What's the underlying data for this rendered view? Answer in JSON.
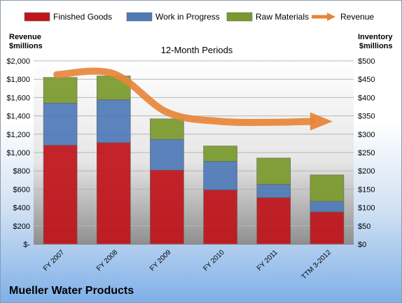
{
  "chart_data": {
    "type": "bar",
    "stacked": true,
    "title": "12-Month Periods",
    "left_axis_title": [
      "Revenue",
      "$millions"
    ],
    "right_axis_title": [
      "Inventory",
      "$millions"
    ],
    "company": "Mueller Water Products",
    "categories": [
      "FY 2007",
      "FY 2008",
      "FY 2009",
      "FY 2010",
      "FY 2011",
      "TTM 3-2012"
    ],
    "series": [
      {
        "name": "Finished Goods",
        "color": "#c0141b",
        "values": [
          270,
          277,
          202,
          148,
          127,
          88
        ]
      },
      {
        "name": "Work in Progress",
        "color": "#4f7ab8",
        "values": [
          115,
          117,
          84,
          78,
          36,
          29
        ]
      },
      {
        "name": "Raw Materials",
        "color": "#7a9a2c",
        "values": [
          70,
          65,
          56,
          42,
          72,
          72
        ]
      }
    ],
    "line_series": {
      "name": "Revenue",
      "color": "#e8853a",
      "values": [
        1850,
        1860,
        1440,
        1340,
        1330,
        1340
      ]
    },
    "left_ylim": [
      0,
      2000
    ],
    "left_ticks": [
      "$-",
      "$200",
      "$400",
      "$600",
      "$800",
      "$1,000",
      "$1,200",
      "$1,400",
      "$1,600",
      "$1,800",
      "$2,000"
    ],
    "right_ylim": [
      0,
      500
    ],
    "right_ticks": [
      "$0",
      "$50",
      "$100",
      "$150",
      "$200",
      "$250",
      "$300",
      "$350",
      "$400",
      "$450",
      "$500"
    ],
    "legend_position": "top",
    "grid": true
  }
}
